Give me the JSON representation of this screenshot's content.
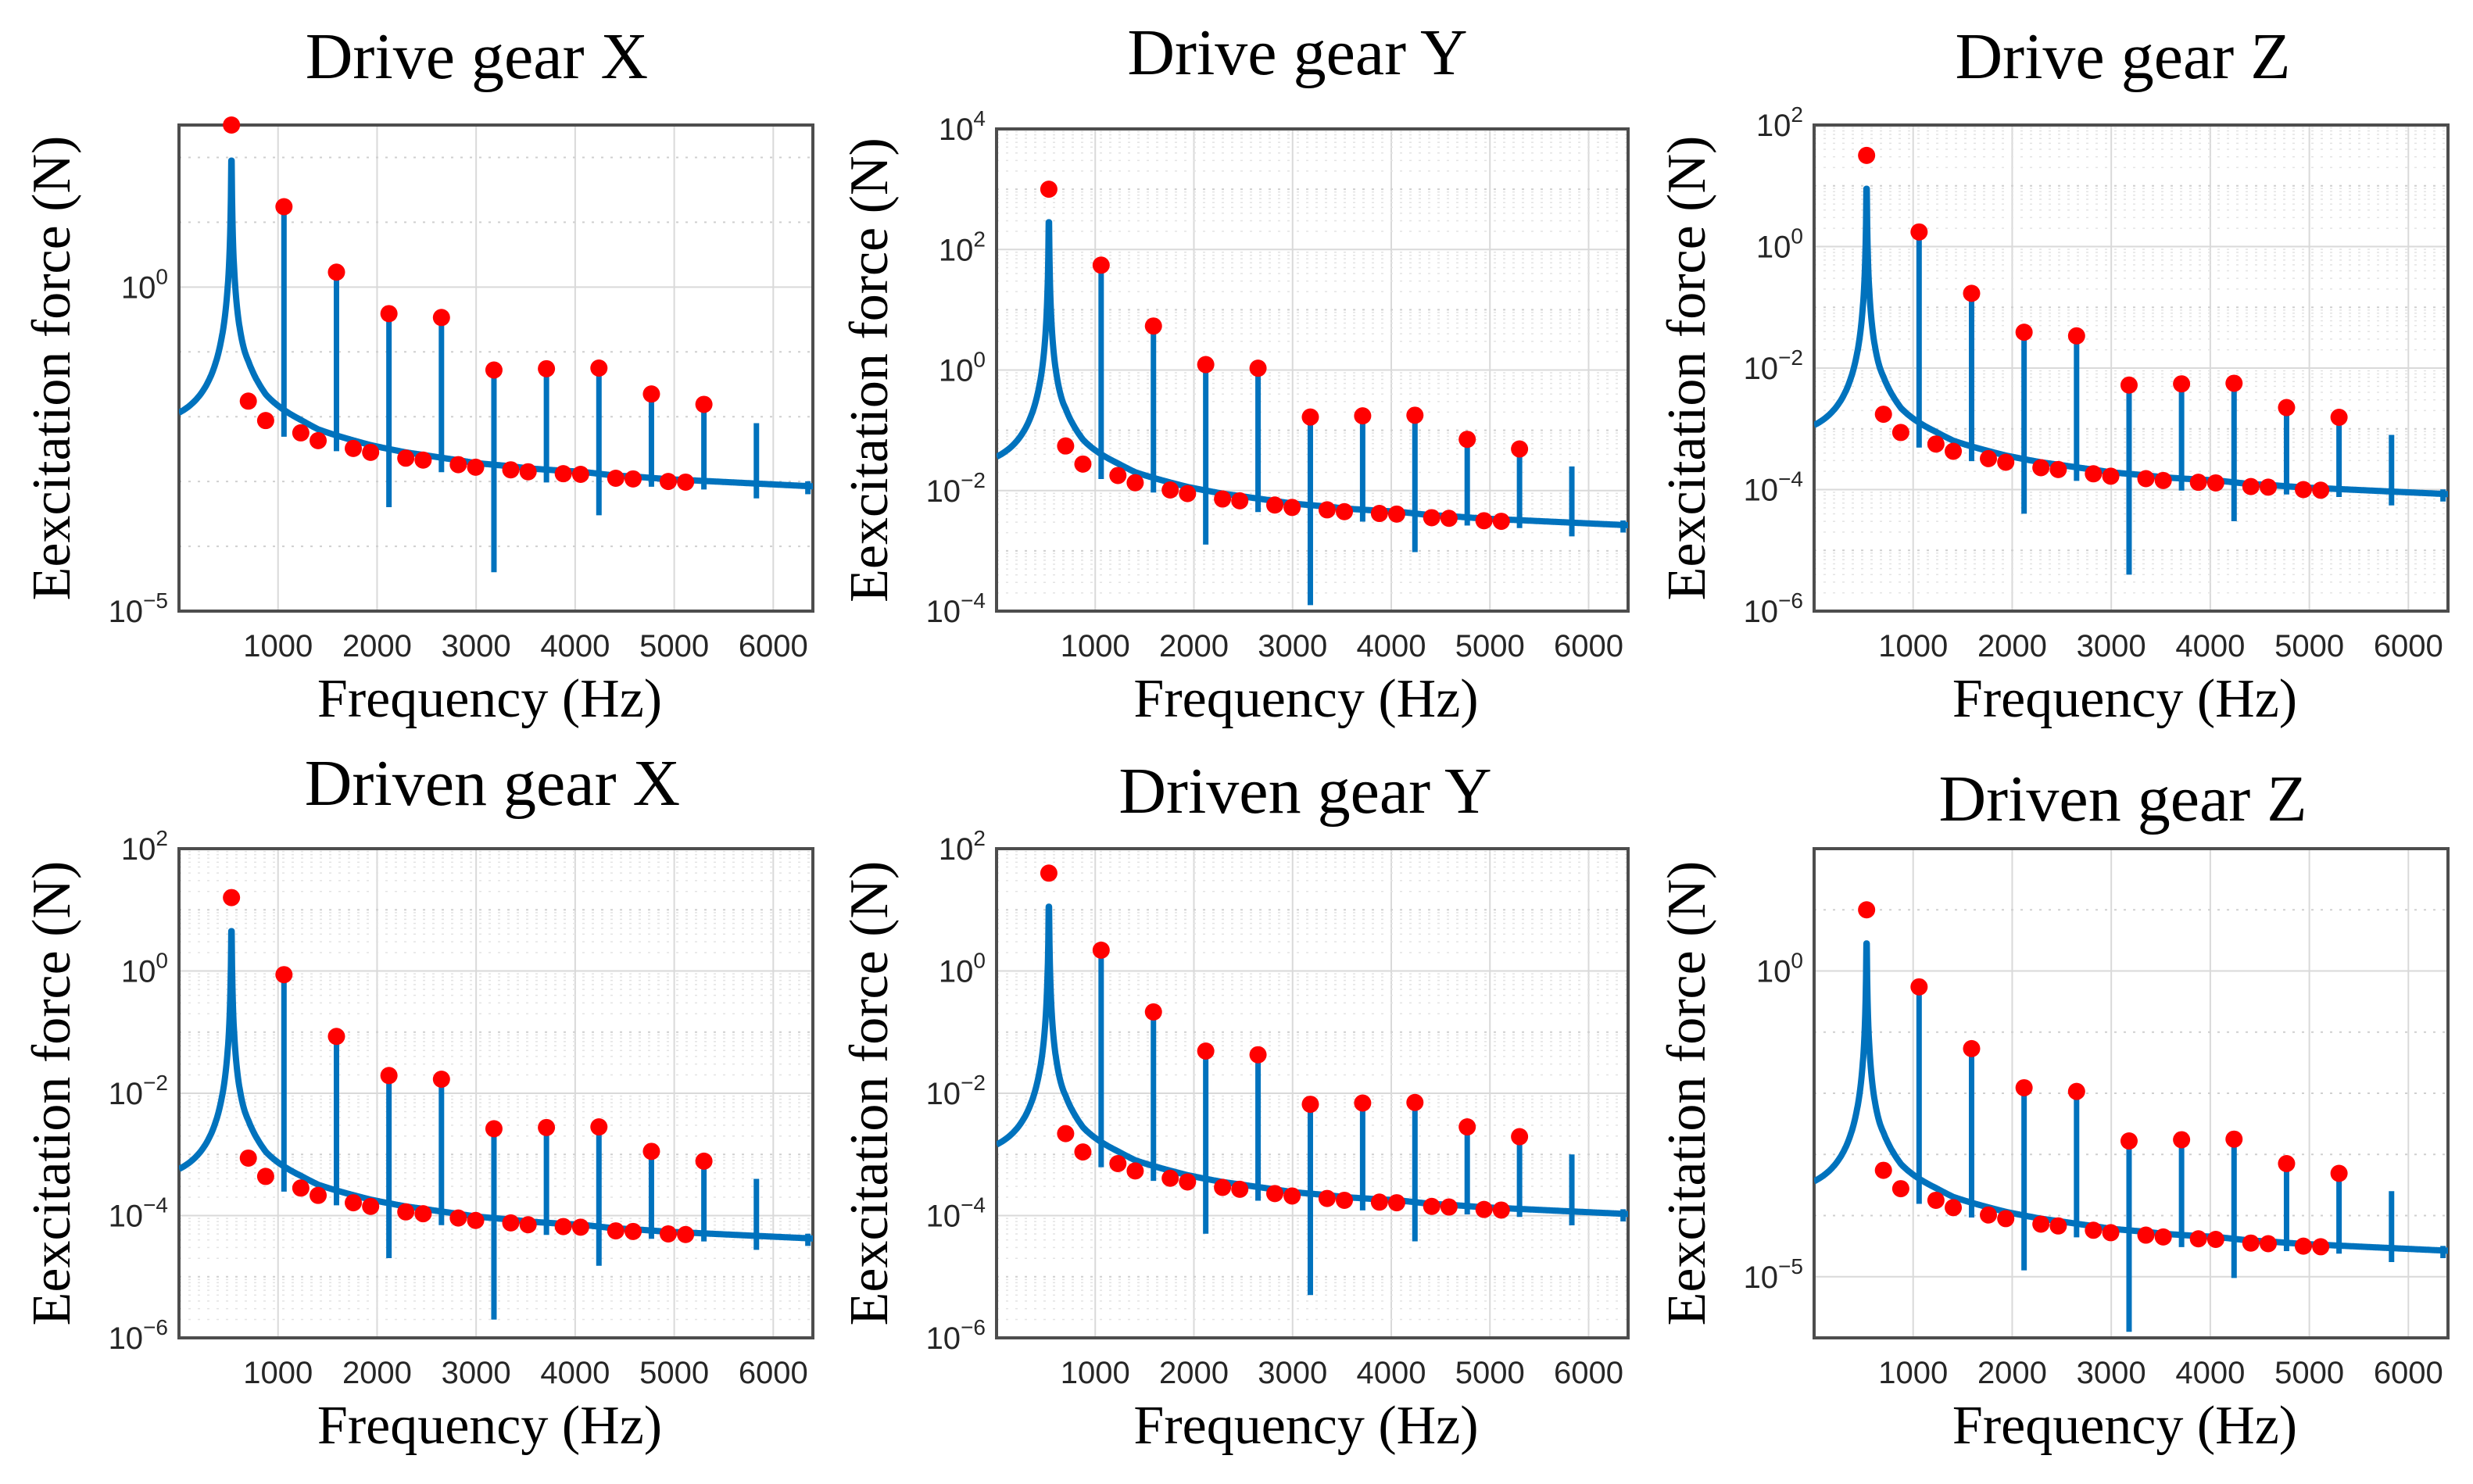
{
  "colors": {
    "line": "#0072BD",
    "marker": "#FF0000",
    "axis": "#4d4d4d",
    "grid": "#d9d9d9"
  },
  "chart_data": [
    {
      "type": "line",
      "title": "Drive gear X",
      "xlabel": "Frequency (Hz)",
      "ylabel": "Eexcitation force (N)",
      "yscale": "log",
      "xlim": [
        0,
        6400
      ],
      "ylim_log10": [
        -5,
        2.5
      ],
      "xticks": [
        "1000",
        "2000",
        "3000",
        "4000",
        "5000",
        "6000"
      ],
      "xtick_values": [
        1000,
        2000,
        3000,
        4000,
        5000,
        6000
      ],
      "yticks": [
        {
          "base": "10",
          "exp": "0",
          "value": 0
        },
        {
          "base": "10",
          "exp": "−5",
          "value": -5
        }
      ],
      "minor_grid": false,
      "peak_freqs": [
        530,
        1060,
        1590,
        2120,
        2650,
        3180,
        3710,
        4240,
        4770,
        5300
      ],
      "peaks_log10": [
        2.5,
        1.24,
        0.23,
        -0.41,
        -0.47,
        -1.28,
        -1.26,
        -1.25,
        -1.65,
        -1.81
      ],
      "dot_freqs": [
        700,
        875,
        1230,
        1405,
        1760,
        1935,
        2290,
        2465,
        2820,
        2995,
        3350,
        3525,
        3880,
        4055,
        4410,
        4585,
        4940,
        5115
      ],
      "dots_log10": [
        -1.76,
        -2.06,
        -2.25,
        -2.37,
        -2.49,
        -2.55,
        -2.64,
        -2.67,
        -2.74,
        -2.78,
        -2.82,
        -2.85,
        -2.88,
        -2.89,
        -2.95,
        -2.96,
        -3.0,
        -3.01
      ],
      "curve_start_log10": -2.24,
      "curve_end_log10": -3.1,
      "last_spike_freq": 5830,
      "last_spike_log10": -2.1
    },
    {
      "type": "line",
      "title": "Drive gear Y",
      "xlabel": "Frequency (Hz)",
      "ylabel": "Eexcitation force (N)",
      "yscale": "log",
      "xlim": [
        0,
        6400
      ],
      "ylim_log10": [
        -4,
        4
      ],
      "xticks": [
        "1000",
        "2000",
        "3000",
        "4000",
        "5000",
        "6000"
      ],
      "xtick_values": [
        1000,
        2000,
        3000,
        4000,
        5000,
        6000
      ],
      "yticks": [
        {
          "base": "10",
          "exp": "4",
          "value": 4
        },
        {
          "base": "10",
          "exp": "2",
          "value": 2
        },
        {
          "base": "10",
          "exp": "0",
          "value": 0
        },
        {
          "base": "10",
          "exp": "−2",
          "value": -2
        },
        {
          "base": "10",
          "exp": "−4",
          "value": -4
        }
      ],
      "minor_grid": true,
      "peak_freqs": [
        530,
        1060,
        1590,
        2120,
        2650,
        3180,
        3710,
        4240,
        4770,
        5300
      ],
      "peaks_log10": [
        3.0,
        1.74,
        0.73,
        0.09,
        0.03,
        -0.78,
        -0.76,
        -0.75,
        -1.15,
        -1.31
      ],
      "dot_freqs": [
        700,
        875,
        1230,
        1405,
        1760,
        1935,
        2290,
        2465,
        2820,
        2995,
        3350,
        3525,
        3880,
        4055,
        4410,
        4585,
        4940,
        5115
      ],
      "dots_log10": [
        -1.26,
        -1.56,
        -1.75,
        -1.87,
        -1.99,
        -2.05,
        -2.14,
        -2.17,
        -2.24,
        -2.28,
        -2.32,
        -2.35,
        -2.38,
        -2.39,
        -2.45,
        -2.46,
        -2.5,
        -2.51
      ],
      "curve_start_log10": -1.74,
      "curve_end_log10": -2.6,
      "last_spike_freq": 5830,
      "last_spike_log10": -1.6
    },
    {
      "type": "line",
      "title": "Drive gear Z",
      "xlabel": "Frequency (Hz)",
      "ylabel": "Eexcitation force (N)",
      "yscale": "log",
      "xlim": [
        0,
        6400
      ],
      "ylim_log10": [
        -6,
        2
      ],
      "xticks": [
        "1000",
        "2000",
        "3000",
        "4000",
        "5000",
        "6000"
      ],
      "xtick_values": [
        1000,
        2000,
        3000,
        4000,
        5000,
        6000
      ],
      "yticks": [
        {
          "base": "10",
          "exp": "2",
          "value": 2
        },
        {
          "base": "10",
          "exp": "0",
          "value": 0
        },
        {
          "base": "10",
          "exp": "−2",
          "value": -2
        },
        {
          "base": "10",
          "exp": "−4",
          "value": -4
        },
        {
          "base": "10",
          "exp": "−6",
          "value": -6
        }
      ],
      "minor_grid": true,
      "peak_freqs": [
        530,
        1060,
        1590,
        2120,
        2650,
        3180,
        3710,
        4240,
        4770,
        5300
      ],
      "peaks_log10": [
        1.5,
        0.24,
        -0.77,
        -1.41,
        -1.47,
        -2.28,
        -2.26,
        -2.25,
        -2.65,
        -2.81
      ],
      "dot_freqs": [
        700,
        875,
        1230,
        1405,
        1760,
        1935,
        2290,
        2465,
        2820,
        2995,
        3350,
        3525,
        3880,
        4055,
        4410,
        4585,
        4940,
        5115
      ],
      "dots_log10": [
        -2.76,
        -3.06,
        -3.25,
        -3.37,
        -3.49,
        -3.55,
        -3.64,
        -3.67,
        -3.74,
        -3.78,
        -3.82,
        -3.85,
        -3.88,
        -3.89,
        -3.95,
        -3.96,
        -4.0,
        -4.01
      ],
      "curve_start_log10": -3.24,
      "curve_end_log10": -4.1,
      "last_spike_freq": 5830,
      "last_spike_log10": -3.1
    },
    {
      "type": "line",
      "title": "Driven gear X",
      "xlabel": "Frequency (Hz)",
      "ylabel": "Eexcitation force (N)",
      "yscale": "log",
      "xlim": [
        0,
        6400
      ],
      "ylim_log10": [
        -6,
        2
      ],
      "xticks": [
        "1000",
        "2000",
        "3000",
        "4000",
        "5000",
        "6000"
      ],
      "xtick_values": [
        1000,
        2000,
        3000,
        4000,
        5000,
        6000
      ],
      "yticks": [
        {
          "base": "10",
          "exp": "2",
          "value": 2
        },
        {
          "base": "10",
          "exp": "0",
          "value": 0
        },
        {
          "base": "10",
          "exp": "−2",
          "value": -2
        },
        {
          "base": "10",
          "exp": "−4",
          "value": -4
        },
        {
          "base": "10",
          "exp": "−6",
          "value": -6
        }
      ],
      "minor_grid": true,
      "peak_freqs": [
        530,
        1060,
        1590,
        2120,
        2650,
        3180,
        3710,
        4240,
        4770,
        5300
      ],
      "peaks_log10": [
        1.2,
        -0.06,
        -1.07,
        -1.71,
        -1.77,
        -2.58,
        -2.56,
        -2.55,
        -2.95,
        -3.11
      ],
      "dot_freqs": [
        700,
        875,
        1230,
        1405,
        1760,
        1935,
        2290,
        2465,
        2820,
        2995,
        3350,
        3525,
        3880,
        4055,
        4410,
        4585,
        4940,
        5115
      ],
      "dots_log10": [
        -3.06,
        -3.36,
        -3.55,
        -3.67,
        -3.79,
        -3.85,
        -3.94,
        -3.97,
        -4.04,
        -4.08,
        -4.12,
        -4.15,
        -4.18,
        -4.19,
        -4.25,
        -4.26,
        -4.3,
        -4.31
      ],
      "curve_start_log10": -3.54,
      "curve_end_log10": -4.4,
      "last_spike_freq": 5830,
      "last_spike_log10": -3.4
    },
    {
      "type": "line",
      "title": "Driven gear Y",
      "xlabel": "Frequency (Hz)",
      "ylabel": "Eexcitation force (N)",
      "yscale": "log",
      "xlim": [
        0,
        6400
      ],
      "ylim_log10": [
        -6,
        2
      ],
      "xticks": [
        "1000",
        "2000",
        "3000",
        "4000",
        "5000",
        "6000"
      ],
      "xtick_values": [
        1000,
        2000,
        3000,
        4000,
        5000,
        6000
      ],
      "yticks": [
        {
          "base": "10",
          "exp": "2",
          "value": 2
        },
        {
          "base": "10",
          "exp": "0",
          "value": 0
        },
        {
          "base": "10",
          "exp": "−2",
          "value": -2
        },
        {
          "base": "10",
          "exp": "−4",
          "value": -4
        },
        {
          "base": "10",
          "exp": "−6",
          "value": -6
        }
      ],
      "minor_grid": true,
      "peak_freqs": [
        530,
        1060,
        1590,
        2120,
        2650,
        3180,
        3710,
        4240,
        4770,
        5300
      ],
      "peaks_log10": [
        1.6,
        0.34,
        -0.67,
        -1.31,
        -1.37,
        -2.18,
        -2.16,
        -2.15,
        -2.55,
        -2.71
      ],
      "dot_freqs": [
        700,
        875,
        1230,
        1405,
        1760,
        1935,
        2290,
        2465,
        2820,
        2995,
        3350,
        3525,
        3880,
        4055,
        4410,
        4585,
        4940,
        5115
      ],
      "dots_log10": [
        -2.66,
        -2.96,
        -3.15,
        -3.27,
        -3.39,
        -3.45,
        -3.54,
        -3.57,
        -3.64,
        -3.68,
        -3.72,
        -3.75,
        -3.78,
        -3.79,
        -3.85,
        -3.86,
        -3.9,
        -3.91
      ],
      "curve_start_log10": -3.14,
      "curve_end_log10": -4.0,
      "last_spike_freq": 5830,
      "last_spike_log10": -3.0
    },
    {
      "type": "line",
      "title": "Driven gear Z",
      "xlabel": "Frequency (Hz)",
      "ylabel": "Eexcitation force (N)",
      "yscale": "log",
      "xlim": [
        0,
        6400
      ],
      "ylim_log10": [
        -6,
        2
      ],
      "xticks": [
        "1000",
        "2000",
        "3000",
        "4000",
        "5000",
        "6000"
      ],
      "xtick_values": [
        1000,
        2000,
        3000,
        4000,
        5000,
        6000
      ],
      "yticks": [
        {
          "base": "10",
          "exp": "0",
          "value": 0
        },
        {
          "base": "10",
          "exp": "−5",
          "value": -5
        }
      ],
      "minor_grid": false,
      "peak_freqs": [
        530,
        1060,
        1590,
        2120,
        2650,
        3180,
        3710,
        4240,
        4770,
        5300
      ],
      "peaks_log10": [
        1.0,
        -0.26,
        -1.27,
        -1.91,
        -1.97,
        -2.78,
        -2.76,
        -2.75,
        -3.15,
        -3.31
      ],
      "dot_freqs": [
        700,
        875,
        1230,
        1405,
        1760,
        1935,
        2290,
        2465,
        2820,
        2995,
        3350,
        3525,
        3880,
        4055,
        4410,
        4585,
        4940,
        5115
      ],
      "dots_log10": [
        -3.26,
        -3.56,
        -3.75,
        -3.87,
        -3.99,
        -4.05,
        -4.14,
        -4.17,
        -4.24,
        -4.28,
        -4.32,
        -4.35,
        -4.38,
        -4.39,
        -4.45,
        -4.46,
        -4.5,
        -4.51
      ],
      "curve_start_log10": -3.74,
      "curve_end_log10": -4.6,
      "last_spike_freq": 5830,
      "last_spike_log10": -3.6
    }
  ]
}
